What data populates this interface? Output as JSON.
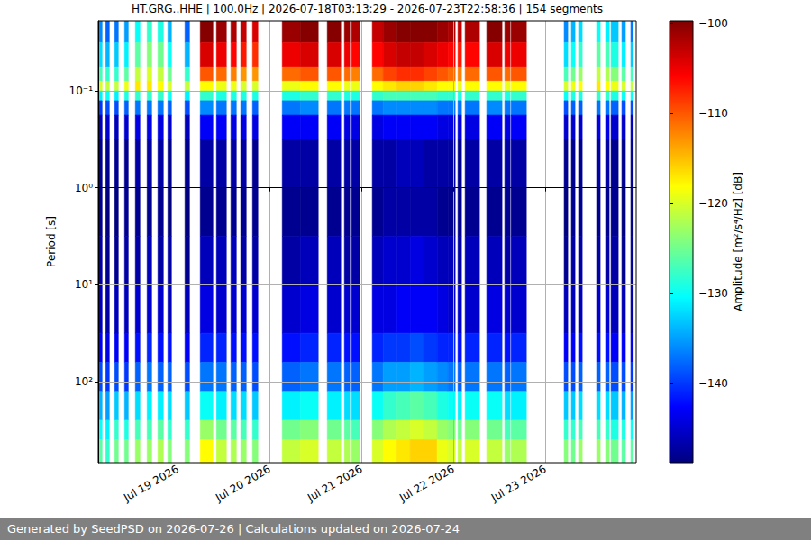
{
  "chart_data": {
    "type": "heatmap",
    "title": "HT.GRG..HHE | 100.0Hz | 2026-07-18T03:13:29 - 2026-07-23T22:58:36 | 154 segments",
    "y_label": "Period [s]",
    "colorbar_label": "Amplitude [m²/s⁴/Hz] [dB]",
    "footer": "Generated by SeedPSD on 2026-07-26 | Calculations updated on 2026-07-24",
    "log": "y",
    "grid": true,
    "xlim": [
      "2026-07-18T03:13:29",
      "2026-07-23T23:45"
    ],
    "xticks": [
      {
        "value": "2026-07-19T00:00",
        "label": "Jul 19 2026"
      },
      {
        "value": "2026-07-20T00:00",
        "label": "Jul 20 2026"
      },
      {
        "value": "2026-07-21T00:00",
        "label": "Jul 21 2026"
      },
      {
        "value": "2026-07-22T00:00",
        "label": "Jul 22 2026"
      },
      {
        "value": "2026-07-23T00:00",
        "label": "Jul 23 2026"
      }
    ],
    "ylim": [
      687,
      0.0188
    ],
    "yticks": [
      {
        "value": 0.1,
        "label": "10⁻¹"
      },
      {
        "value": 1,
        "label": "10⁰"
      },
      {
        "value": 10,
        "label": "10¹"
      },
      {
        "value": 100,
        "label": "10²"
      }
    ],
    "clim": [
      -148.8,
      -99.7
    ],
    "cticks": [
      {
        "value": -140,
        "label": "−140"
      },
      {
        "value": -130,
        "label": "−130"
      },
      {
        "value": -120,
        "label": "−120"
      },
      {
        "value": -110,
        "label": "−110"
      },
      {
        "value": -100,
        "label": "−100"
      }
    ],
    "period_edges": [
      0.0188,
      0.0316,
      0.0562,
      0.0794,
      0.1,
      0.126,
      0.178,
      0.316,
      1,
      3.16,
      10,
      31.6,
      63.1,
      126,
      251,
      398,
      687
    ],
    "x_start": [
      "2026-07-18T03:13",
      "2026-07-18T05:11",
      "2026-07-18T07:32",
      "2026-07-18T10:07",
      "2026-07-18T12:56",
      "2026-07-18T16:00",
      "2026-07-18T18:49",
      "2026-07-18T21:25",
      "2026-07-19T01:53",
      "2026-07-19T05:53",
      "2026-07-19T10:07",
      "2026-07-19T13:53",
      "2026-07-19T16:28",
      "2026-07-19T19:32",
      "2026-07-20T03:18",
      "2026-07-20T08:00",
      "2026-07-20T15:04",
      "2026-07-20T19:32",
      "2026-07-20T21:25",
      "2026-07-21T02:49",
      "2026-07-21T05:39",
      "2026-07-21T09:11",
      "2026-07-21T12:42",
      "2026-07-21T16:14",
      "2026-07-21T19:46",
      "2026-07-21T22:35",
      "2026-07-22T01:11",
      "2026-07-22T03:04",
      "2026-07-22T08:42",
      "2026-07-22T13:25",
      "2026-07-22T15:04",
      "2026-07-23T04:56",
      "2026-07-23T06:49",
      "2026-07-23T08:42",
      "2026-07-23T13:25",
      "2026-07-23T15:46",
      "2026-07-23T17:11",
      "2026-07-23T20:00",
      "2026-07-23T22:21"
    ],
    "x_end": [
      "2026-07-18T04:14",
      "2026-07-18T06:07",
      "2026-07-18T08:28",
      "2026-07-18T11:04",
      "2026-07-18T14:07",
      "2026-07-18T17:11",
      "2026-07-18T20:14",
      "2026-07-18T22:21",
      "2026-07-19T03:04",
      "2026-07-19T09:11",
      "2026-07-19T12:42",
      "2026-07-19T15:18",
      "2026-07-19T17:53",
      "2026-07-19T20:56",
      "2026-07-20T08:00",
      "2026-07-20T12:42",
      "2026-07-20T18:35",
      "2026-07-20T20:56",
      "2026-07-20T23:32",
      "2026-07-21T05:39",
      "2026-07-21T09:11",
      "2026-07-21T12:42",
      "2026-07-21T16:14",
      "2026-07-21T19:46",
      "2026-07-21T22:35",
      "2026-07-22T00:28",
      "2026-07-22T02:07",
      "2026-07-22T06:49",
      "2026-07-22T12:42",
      "2026-07-22T14:49",
      "2026-07-22T19:04",
      "2026-07-23T05:53",
      "2026-07-23T07:46",
      "2026-07-23T09:39",
      "2026-07-23T14:21",
      "2026-07-23T16:42",
      "2026-07-23T19:04",
      "2026-07-23T20:56",
      "2026-07-23T22:58"
    ],
    "cells": [
      [
        -136,
        -132,
        -127,
        -120,
        -131,
        -140,
        -146,
        -148,
        -148,
        -147,
        -146,
        -143,
        -139,
        -134,
        -130,
        -126
      ],
      [
        -138,
        -134,
        -128,
        -121,
        -130,
        -139,
        -145,
        -148,
        -149,
        -148,
        -147,
        -144,
        -140,
        -135,
        -131,
        -128
      ],
      [
        -137,
        -133,
        -128,
        -121,
        -131,
        -139,
        -146,
        -148,
        -149,
        -148,
        -146,
        -143,
        -139,
        -133,
        -128,
        -125
      ],
      [
        -135,
        -131,
        -126,
        -119,
        -129,
        -138,
        -145,
        -148,
        -148,
        -147,
        -146,
        -143,
        -140,
        -134,
        -129,
        -125
      ],
      [
        -130,
        -126,
        -121,
        -117,
        -128,
        -137,
        -144,
        -147,
        -148,
        -147,
        -145,
        -142,
        -138,
        -132,
        -127,
        -123
      ],
      [
        -128,
        -124,
        -120,
        -117,
        -128,
        -137,
        -144,
        -147,
        -148,
        -146,
        -145,
        -141,
        -137,
        -131,
        -127,
        -123
      ],
      [
        -129,
        -125,
        -121,
        -118,
        -128,
        -137,
        -144,
        -147,
        -148,
        -147,
        -145,
        -142,
        -138,
        -131,
        -126,
        -122
      ],
      [
        -134,
        -130,
        -125,
        -120,
        -130,
        -138,
        -145,
        -148,
        -149,
        -147,
        -146,
        -142,
        -138,
        -132,
        -128,
        -124
      ],
      [
        -138,
        -134,
        -128,
        -121,
        -131,
        -139,
        -146,
        -148,
        -149,
        -148,
        -146,
        -143,
        -139,
        -133,
        -128,
        -124
      ],
      [
        -100,
        -104,
        -110,
        -118,
        -128,
        -136,
        -143,
        -147,
        -148,
        -146,
        -144,
        -141,
        -137,
        -130,
        -123,
        -118
      ],
      [
        -101,
        -105,
        -111,
        -119,
        -129,
        -137,
        -143,
        -147,
        -148,
        -146,
        -145,
        -141,
        -137,
        -131,
        -125,
        -121
      ],
      [
        -102,
        -106,
        -112,
        -119,
        -129,
        -137,
        -144,
        -147,
        -148,
        -146,
        -145,
        -142,
        -138,
        -132,
        -126,
        -122
      ],
      [
        -103,
        -107,
        -113,
        -120,
        -129,
        -137,
        -144,
        -147,
        -148,
        -147,
        -145,
        -142,
        -138,
        -132,
        -127,
        -123
      ],
      [
        -104,
        -108,
        -113,
        -120,
        -129,
        -138,
        -144,
        -148,
        -148,
        -147,
        -145,
        -142,
        -139,
        -133,
        -128,
        -124
      ],
      [
        -101,
        -105,
        -111,
        -119,
        -129,
        -137,
        -143,
        -147,
        -148,
        -147,
        -145,
        -142,
        -138,
        -131,
        -125,
        -121
      ],
      [
        -100,
        -104,
        -110,
        -118,
        -128,
        -136,
        -143,
        -147,
        -148,
        -146,
        -144,
        -141,
        -137,
        -130,
        -124,
        -120
      ],
      [
        -100,
        -104,
        -110,
        -118,
        -128,
        -137,
        -143,
        -147,
        -148,
        -146,
        -145,
        -141,
        -137,
        -131,
        -125,
        -121
      ],
      [
        -101,
        -105,
        -111,
        -119,
        -129,
        -137,
        -144,
        -147,
        -148,
        -147,
        -145,
        -142,
        -138,
        -132,
        -126,
        -122
      ],
      [
        -102,
        -106,
        -112,
        -119,
        -129,
        -137,
        -144,
        -147,
        -148,
        -147,
        -145,
        -142,
        -138,
        -132,
        -127,
        -123
      ],
      [
        -103,
        -106,
        -111,
        -118,
        -128,
        -137,
        -144,
        -147,
        -148,
        -146,
        -144,
        -141,
        -137,
        -130,
        -124,
        -120
      ],
      [
        -101,
        -104,
        -109,
        -117,
        -127,
        -136,
        -143,
        -147,
        -147,
        -145,
        -144,
        -140,
        -135,
        -128,
        -122,
        -118
      ],
      [
        -100,
        -103,
        -108,
        -116,
        -127,
        -136,
        -143,
        -146,
        -147,
        -145,
        -143,
        -140,
        -135,
        -127,
        -121,
        -117
      ],
      [
        -100,
        -103,
        -108,
        -116,
        -127,
        -136,
        -143,
        -146,
        -147,
        -144,
        -143,
        -139,
        -134,
        -126,
        -120,
        -116
      ],
      [
        -100,
        -104,
        -109,
        -117,
        -127,
        -136,
        -143,
        -147,
        -147,
        -145,
        -143,
        -140,
        -135,
        -127,
        -121,
        -116
      ],
      [
        -101,
        -105,
        -110,
        -118,
        -128,
        -137,
        -144,
        -147,
        -148,
        -146,
        -144,
        -141,
        -136,
        -129,
        -123,
        -119
      ],
      [
        -102,
        -106,
        -111,
        -118,
        -128,
        -137,
        -144,
        -147,
        -148,
        -146,
        -145,
        -141,
        -137,
        -130,
        -124,
        -120
      ],
      [
        -103,
        -107,
        -112,
        -119,
        -129,
        -137,
        -144,
        -148,
        -148,
        -147,
        -145,
        -142,
        -138,
        -131,
        -125,
        -121
      ],
      [
        -102,
        -106,
        -111,
        -118,
        -128,
        -137,
        -144,
        -147,
        -148,
        -146,
        -145,
        -141,
        -137,
        -130,
        -124,
        -120
      ],
      [
        -100,
        -104,
        -110,
        -118,
        -128,
        -136,
        -143,
        -147,
        -148,
        -146,
        -144,
        -141,
        -137,
        -130,
        -125,
        -121
      ],
      [
        -101,
        -105,
        -111,
        -119,
        -129,
        -137,
        -144,
        -147,
        -148,
        -147,
        -145,
        -142,
        -138,
        -132,
        -127,
        -123
      ],
      [
        -101,
        -105,
        -110,
        -118,
        -128,
        -137,
        -143,
        -147,
        -148,
        -146,
        -145,
        -141,
        -137,
        -131,
        -126,
        -122
      ],
      [
        -136,
        -132,
        -127,
        -120,
        -130,
        -139,
        -145,
        -148,
        -149,
        -148,
        -146,
        -143,
        -139,
        -133,
        -128,
        -124
      ],
      [
        -134,
        -130,
        -125,
        -119,
        -129,
        -138,
        -145,
        -148,
        -148,
        -147,
        -146,
        -143,
        -139,
        -133,
        -128,
        -125
      ],
      [
        -132,
        -128,
        -123,
        -118,
        -129,
        -138,
        -145,
        -148,
        -148,
        -147,
        -146,
        -142,
        -138,
        -132,
        -127,
        -123
      ],
      [
        -130,
        -126,
        -121,
        -117,
        -128,
        -137,
        -144,
        -147,
        -148,
        -147,
        -145,
        -142,
        -138,
        -132,
        -127,
        -123
      ],
      [
        -131,
        -127,
        -122,
        -118,
        -128,
        -137,
        -144,
        -147,
        -148,
        -147,
        -145,
        -142,
        -138,
        -132,
        -128,
        -124
      ],
      [
        -133,
        -129,
        -124,
        -119,
        -129,
        -138,
        -145,
        -148,
        -148,
        -147,
        -146,
        -143,
        -139,
        -133,
        -129,
        -125
      ],
      [
        -135,
        -131,
        -126,
        -120,
        -130,
        -139,
        -145,
        -148,
        -149,
        -148,
        -146,
        -143,
        -139,
        -134,
        -129,
        -126
      ],
      [
        -137,
        -133,
        -127,
        -121,
        -130,
        -139,
        -146,
        -148,
        -149,
        -148,
        -147,
        -144,
        -140,
        -135,
        -130,
        -126
      ]
    ]
  }
}
